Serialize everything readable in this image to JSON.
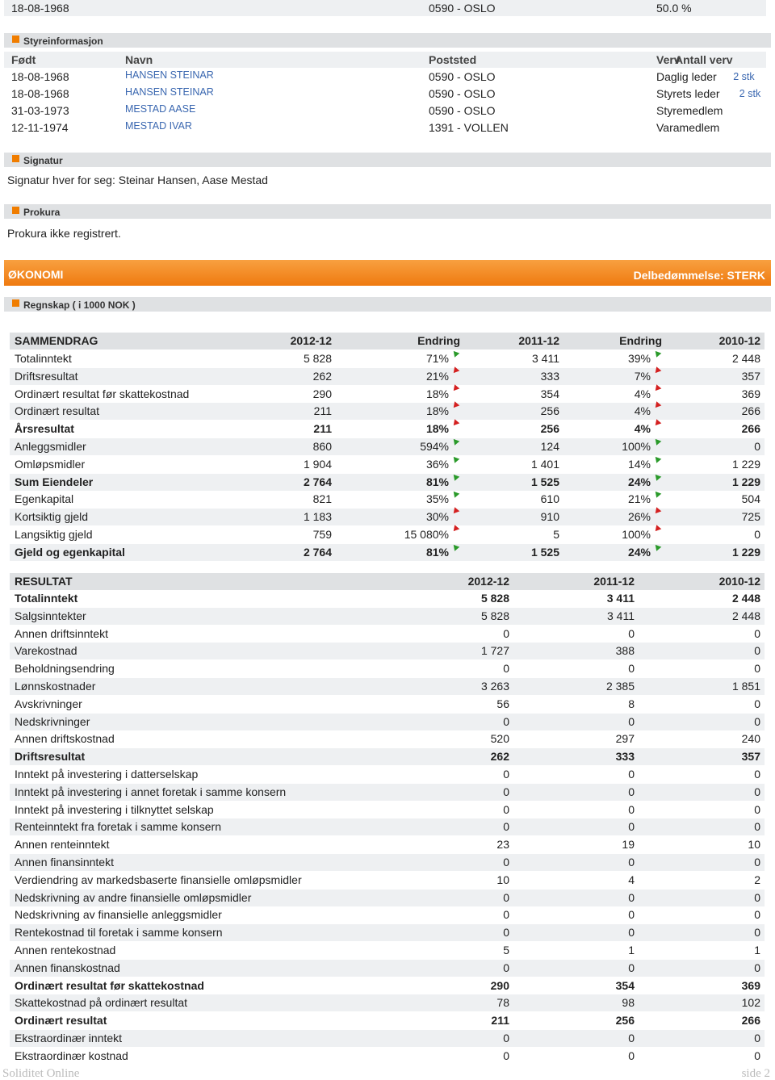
{
  "top": {
    "date": "18-08-1968",
    "place": "0590  -  OSLO",
    "share": "50.0 %"
  },
  "board": {
    "title": "Styreinformasjon",
    "columns": [
      "Født",
      "Navn",
      "Poststed",
      "Verv",
      "Antall verv"
    ],
    "rows": [
      [
        "18-08-1968",
        "HANSEN STEINAR",
        "0590  -  OSLO",
        "Daglig leder",
        "2 stk"
      ],
      [
        "18-08-1968",
        "HANSEN STEINAR",
        "0590  -  OSLO",
        "Styrets leder",
        "2 stk"
      ],
      [
        "31-03-1973",
        "MESTAD AASE",
        "0590  -  OSLO",
        "Styremedlem"
      ],
      [
        "12-11-1974",
        "MESTAD IVAR",
        "1391  -  VOLLEN",
        "Varamedlem"
      ]
    ]
  },
  "signature": {
    "title": "Signatur",
    "text": "Signatur hver for seg: Steinar Hansen, Aase Mestad"
  },
  "procura": {
    "title": "Prokura",
    "text": "Prokura ikke registrert."
  },
  "economy": {
    "title": "ØKONOMI",
    "rating": "Delbedømmelse: STERK",
    "subtitle": "Regnskap ( i 1000 NOK )"
  },
  "summary": {
    "columns": [
      "SAMMENDRAG",
      "2012-12",
      "Endring",
      "2011-12",
      "Endring",
      "2010-12"
    ],
    "rows": [
      {
        "label": "Totalinntekt",
        "values": [
          "5 828",
          "71%",
          "3 411",
          "39%",
          "2 448"
        ],
        "trend": [
          "up",
          "up"
        ]
      },
      {
        "label": "Driftsresultat",
        "values": [
          "262",
          "21%",
          "333",
          "7%",
          "357"
        ],
        "trend": [
          "down",
          "down"
        ]
      },
      {
        "label": "Ordinært resultat før skattekostnad",
        "values": [
          "290",
          "18%",
          "354",
          "4%",
          "369"
        ],
        "trend": [
          "down",
          "down"
        ]
      },
      {
        "label": "Ordinært resultat",
        "values": [
          "211",
          "18%",
          "256",
          "4%",
          "266"
        ],
        "trend": [
          "down",
          "down"
        ]
      },
      {
        "label": "Årsresultat",
        "values": [
          "211",
          "18%",
          "256",
          "4%",
          "266"
        ],
        "trend": [
          "down",
          "down"
        ],
        "bold": true
      },
      {
        "label": "Anleggsmidler",
        "values": [
          "860",
          "594%",
          "124",
          "100%",
          "0"
        ],
        "trend": [
          "up",
          "up"
        ]
      },
      {
        "label": "Omløpsmidler",
        "values": [
          "1 904",
          "36%",
          "1 401",
          "14%",
          "1 229"
        ],
        "trend": [
          "up",
          "up"
        ]
      },
      {
        "label": "Sum Eiendeler",
        "values": [
          "2 764",
          "81%",
          "1 525",
          "24%",
          "1 229"
        ],
        "trend": [
          "up",
          "up"
        ],
        "bold": true
      },
      {
        "label": "Egenkapital",
        "values": [
          "821",
          "35%",
          "610",
          "21%",
          "504"
        ],
        "trend": [
          "up",
          "up"
        ]
      },
      {
        "label": "Kortsiktig gjeld",
        "values": [
          "1 183",
          "30%",
          "910",
          "26%",
          "725"
        ],
        "trend": [
          "down",
          "down"
        ]
      },
      {
        "label": "Langsiktig gjeld",
        "values": [
          "759",
          "15 080%",
          "5",
          "100%",
          "0"
        ],
        "trend": [
          "down",
          "down"
        ]
      },
      {
        "label": "Gjeld og egenkapital",
        "values": [
          "2 764",
          "81%",
          "1 525",
          "24%",
          "1 229"
        ],
        "trend": [
          "up",
          "up"
        ],
        "bold": true
      }
    ]
  },
  "result": {
    "columns": [
      "RESULTAT",
      "2012-12",
      "2011-12",
      "2010-12"
    ],
    "rows": [
      {
        "label": "Totalinntekt",
        "values": [
          "5 828",
          "3 411",
          "2 448"
        ],
        "bold": true
      },
      {
        "label": "Salgsinntekter",
        "values": [
          "5 828",
          "3 411",
          "2 448"
        ]
      },
      {
        "label": "Annen driftsinntekt",
        "values": [
          "0",
          "0",
          "0"
        ]
      },
      {
        "label": "Varekostnad",
        "values": [
          "1 727",
          "388",
          "0"
        ]
      },
      {
        "label": "Beholdningsendring",
        "values": [
          "0",
          "0",
          "0"
        ]
      },
      {
        "label": "Lønnskostnader",
        "values": [
          "3 263",
          "2 385",
          "1 851"
        ]
      },
      {
        "label": "Avskrivninger",
        "values": [
          "56",
          "8",
          "0"
        ]
      },
      {
        "label": "Nedskrivninger",
        "values": [
          "0",
          "0",
          "0"
        ]
      },
      {
        "label": "Annen driftskostnad",
        "values": [
          "520",
          "297",
          "240"
        ]
      },
      {
        "label": "Driftsresultat",
        "values": [
          "262",
          "333",
          "357"
        ],
        "bold": true
      },
      {
        "label": "Inntekt på investering i datterselskap",
        "values": [
          "0",
          "0",
          "0"
        ]
      },
      {
        "label": "Inntekt på investering i annet foretak i samme konsern",
        "values": [
          "0",
          "0",
          "0"
        ]
      },
      {
        "label": "Inntekt på investering i tilknyttet selskap",
        "values": [
          "0",
          "0",
          "0"
        ]
      },
      {
        "label": "Renteinntekt fra foretak i samme konsern",
        "values": [
          "0",
          "0",
          "0"
        ]
      },
      {
        "label": "Annen renteinntekt",
        "values": [
          "23",
          "19",
          "10"
        ]
      },
      {
        "label": "Annen finansinntekt",
        "values": [
          "0",
          "0",
          "0"
        ]
      },
      {
        "label": "Verdiendring av markedsbaserte finansielle omløpsmidler",
        "values": [
          "10",
          "4",
          "2"
        ]
      },
      {
        "label": "Nedskrivning av andre finansielle omløpsmidler",
        "values": [
          "0",
          "0",
          "0"
        ]
      },
      {
        "label": "Nedskrivning av finansielle anleggsmidler",
        "values": [
          "0",
          "0",
          "0"
        ]
      },
      {
        "label": "Rentekostnad til foretak i samme konsern",
        "values": [
          "0",
          "0",
          "0"
        ]
      },
      {
        "label": "Annen rentekostnad",
        "values": [
          "5",
          "1",
          "1"
        ]
      },
      {
        "label": "Annen finanskostnad",
        "values": [
          "0",
          "0",
          "0"
        ]
      },
      {
        "label": "Ordinært resultat før skattekostnad",
        "values": [
          "290",
          "354",
          "369"
        ],
        "bold": true
      },
      {
        "label": "Skattekostnad på ordinært resultat",
        "values": [
          "78",
          "98",
          "102"
        ]
      },
      {
        "label": "Ordinært resultat",
        "values": [
          "211",
          "256",
          "266"
        ],
        "bold": true
      },
      {
        "label": "Ekstraordinær inntekt",
        "values": [
          "0",
          "0",
          "0"
        ]
      },
      {
        "label": "Ekstraordinær kostnad",
        "values": [
          "0",
          "0",
          "0"
        ]
      }
    ]
  },
  "footer": {
    "brand": "Soliditet Online",
    "page": "side 2"
  }
}
